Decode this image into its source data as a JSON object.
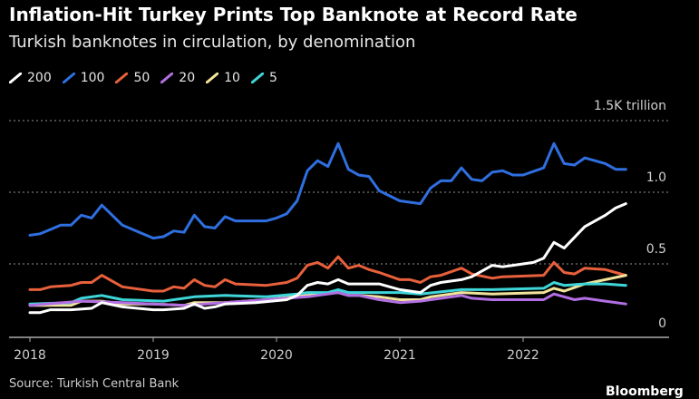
{
  "title": "Inflation-Hit Turkey Prints Top Banknote at Record Rate",
  "subtitle": "Turkish banknotes in circulation, by denomination",
  "source": "Source: Turkish Central Bank",
  "logo": "Bloomberg",
  "chart_data": {
    "type": "line",
    "xlabel": "",
    "ylabel": "",
    "ylim": [
      0,
      1.5
    ],
    "y_ticks": [
      {
        "value": 0,
        "label": "0"
      },
      {
        "value": 0.5,
        "label": "0.5"
      },
      {
        "value": 1.0,
        "label": "1.0"
      },
      {
        "value": 1.5,
        "label": "1.5K trillion"
      }
    ],
    "x_ticks": [
      "2018",
      "2019",
      "2020",
      "2021",
      "2022"
    ],
    "grid": "horizontal dotted",
    "legend": "top-left",
    "series": [
      {
        "name": "200",
        "color": "#ffffff",
        "points": [
          [
            "2018-01",
            0.16
          ],
          [
            "2018-02",
            0.16
          ],
          [
            "2018-03",
            0.18
          ],
          [
            "2018-05",
            0.18
          ],
          [
            "2018-07",
            0.19
          ],
          [
            "2018-08",
            0.23
          ],
          [
            "2018-10",
            0.2
          ],
          [
            "2019-01",
            0.18
          ],
          [
            "2019-02",
            0.18
          ],
          [
            "2019-04",
            0.19
          ],
          [
            "2019-05",
            0.22
          ],
          [
            "2019-06",
            0.19
          ],
          [
            "2019-07",
            0.2
          ],
          [
            "2019-08",
            0.22
          ],
          [
            "2019-11",
            0.23
          ],
          [
            "2020-02",
            0.25
          ],
          [
            "2020-03",
            0.28
          ],
          [
            "2020-04",
            0.35
          ],
          [
            "2020-05",
            0.37
          ],
          [
            "2020-06",
            0.36
          ],
          [
            "2020-07",
            0.39
          ],
          [
            "2020-08",
            0.36
          ],
          [
            "2020-09",
            0.36
          ],
          [
            "2020-10",
            0.36
          ],
          [
            "2020-11",
            0.36
          ],
          [
            "2021-01",
            0.32
          ],
          [
            "2021-02",
            0.31
          ],
          [
            "2021-03",
            0.3
          ],
          [
            "2021-04",
            0.35
          ],
          [
            "2021-05",
            0.37
          ],
          [
            "2021-07",
            0.39
          ],
          [
            "2021-08",
            0.41
          ],
          [
            "2021-10",
            0.49
          ],
          [
            "2021-11",
            0.48
          ],
          [
            "2021-12",
            0.49
          ],
          [
            "2022-02",
            0.51
          ],
          [
            "2022-03",
            0.54
          ],
          [
            "2022-04",
            0.65
          ],
          [
            "2022-05",
            0.61
          ],
          [
            "2022-07",
            0.76
          ],
          [
            "2022-09",
            0.84
          ],
          [
            "2022-10",
            0.89
          ],
          [
            "2022-11",
            0.92
          ]
        ]
      },
      {
        "name": "100",
        "color": "#2f6fe0",
        "points": [
          [
            "2018-01",
            0.7
          ],
          [
            "2018-02",
            0.71
          ],
          [
            "2018-04",
            0.77
          ],
          [
            "2018-05",
            0.77
          ],
          [
            "2018-06",
            0.84
          ],
          [
            "2018-07",
            0.82
          ],
          [
            "2018-08",
            0.91
          ],
          [
            "2018-10",
            0.77
          ],
          [
            "2019-01",
            0.68
          ],
          [
            "2019-02",
            0.69
          ],
          [
            "2019-03",
            0.73
          ],
          [
            "2019-04",
            0.72
          ],
          [
            "2019-05",
            0.84
          ],
          [
            "2019-06",
            0.76
          ],
          [
            "2019-07",
            0.75
          ],
          [
            "2019-08",
            0.83
          ],
          [
            "2019-09",
            0.8
          ],
          [
            "2019-12",
            0.8
          ],
          [
            "2020-01",
            0.82
          ],
          [
            "2020-02",
            0.85
          ],
          [
            "2020-03",
            0.94
          ],
          [
            "2020-04",
            1.15
          ],
          [
            "2020-05",
            1.22
          ],
          [
            "2020-06",
            1.18
          ],
          [
            "2020-07",
            1.34
          ],
          [
            "2020-08",
            1.16
          ],
          [
            "2020-09",
            1.12
          ],
          [
            "2020-10",
            1.11
          ],
          [
            "2020-11",
            1.01
          ],
          [
            "2021-01",
            0.94
          ],
          [
            "2021-03",
            0.92
          ],
          [
            "2021-04",
            1.03
          ],
          [
            "2021-05",
            1.08
          ],
          [
            "2021-06",
            1.08
          ],
          [
            "2021-07",
            1.17
          ],
          [
            "2021-08",
            1.09
          ],
          [
            "2021-09",
            1.08
          ],
          [
            "2021-10",
            1.14
          ],
          [
            "2021-11",
            1.15
          ],
          [
            "2021-12",
            1.12
          ],
          [
            "2022-01",
            1.12
          ],
          [
            "2022-03",
            1.17
          ],
          [
            "2022-04",
            1.34
          ],
          [
            "2022-05",
            1.2
          ],
          [
            "2022-06",
            1.19
          ],
          [
            "2022-07",
            1.24
          ],
          [
            "2022-09",
            1.2
          ],
          [
            "2022-10",
            1.16
          ],
          [
            "2022-11",
            1.16
          ]
        ]
      },
      {
        "name": "50",
        "color": "#e8603c",
        "points": [
          [
            "2018-01",
            0.32
          ],
          [
            "2018-02",
            0.32
          ],
          [
            "2018-03",
            0.34
          ],
          [
            "2018-05",
            0.35
          ],
          [
            "2018-06",
            0.37
          ],
          [
            "2018-07",
            0.37
          ],
          [
            "2018-08",
            0.42
          ],
          [
            "2018-10",
            0.34
          ],
          [
            "2019-01",
            0.31
          ],
          [
            "2019-02",
            0.31
          ],
          [
            "2019-03",
            0.34
          ],
          [
            "2019-04",
            0.33
          ],
          [
            "2019-05",
            0.39
          ],
          [
            "2019-06",
            0.35
          ],
          [
            "2019-07",
            0.34
          ],
          [
            "2019-08",
            0.39
          ],
          [
            "2019-09",
            0.36
          ],
          [
            "2019-12",
            0.35
          ],
          [
            "2020-02",
            0.37
          ],
          [
            "2020-03",
            0.4
          ],
          [
            "2020-04",
            0.49
          ],
          [
            "2020-05",
            0.51
          ],
          [
            "2020-06",
            0.47
          ],
          [
            "2020-07",
            0.55
          ],
          [
            "2020-08",
            0.47
          ],
          [
            "2020-09",
            0.49
          ],
          [
            "2020-10",
            0.46
          ],
          [
            "2020-11",
            0.44
          ],
          [
            "2021-01",
            0.39
          ],
          [
            "2021-02",
            0.39
          ],
          [
            "2021-03",
            0.37
          ],
          [
            "2021-04",
            0.41
          ],
          [
            "2021-05",
            0.42
          ],
          [
            "2021-07",
            0.47
          ],
          [
            "2021-08",
            0.43
          ],
          [
            "2021-10",
            0.4
          ],
          [
            "2021-11",
            0.41
          ],
          [
            "2022-03",
            0.42
          ],
          [
            "2022-04",
            0.51
          ],
          [
            "2022-05",
            0.44
          ],
          [
            "2022-06",
            0.43
          ],
          [
            "2022-07",
            0.47
          ],
          [
            "2022-09",
            0.46
          ],
          [
            "2022-10",
            0.44
          ],
          [
            "2022-11",
            0.42
          ]
        ]
      },
      {
        "name": "20",
        "color": "#b26fe3",
        "points": [
          [
            "2018-01",
            0.21
          ],
          [
            "2018-06",
            0.24
          ],
          [
            "2018-10",
            0.23
          ],
          [
            "2019-04",
            0.21
          ],
          [
            "2019-08",
            0.23
          ],
          [
            "2019-12",
            0.25
          ],
          [
            "2020-04",
            0.27
          ],
          [
            "2020-07",
            0.3
          ],
          [
            "2020-08",
            0.28
          ],
          [
            "2020-09",
            0.28
          ],
          [
            "2020-11",
            0.25
          ],
          [
            "2021-01",
            0.23
          ],
          [
            "2021-03",
            0.24
          ],
          [
            "2021-04",
            0.25
          ],
          [
            "2021-07",
            0.28
          ],
          [
            "2021-08",
            0.26
          ],
          [
            "2021-10",
            0.25
          ],
          [
            "2022-03",
            0.25
          ],
          [
            "2022-04",
            0.29
          ],
          [
            "2022-05",
            0.27
          ],
          [
            "2022-06",
            0.25
          ],
          [
            "2022-07",
            0.26
          ],
          [
            "2022-09",
            0.24
          ],
          [
            "2022-11",
            0.22
          ]
        ]
      },
      {
        "name": "10",
        "color": "#f2e49b",
        "points": [
          [
            "2018-01",
            0.21
          ],
          [
            "2018-05",
            0.21
          ],
          [
            "2018-06",
            0.24
          ],
          [
            "2018-08",
            0.24
          ],
          [
            "2018-10",
            0.22
          ],
          [
            "2019-01",
            0.22
          ],
          [
            "2019-04",
            0.21
          ],
          [
            "2019-05",
            0.23
          ],
          [
            "2019-08",
            0.23
          ],
          [
            "2019-12",
            0.25
          ],
          [
            "2020-04",
            0.28
          ],
          [
            "2020-07",
            0.3
          ],
          [
            "2020-08",
            0.28
          ],
          [
            "2020-09",
            0.28
          ],
          [
            "2020-11",
            0.27
          ],
          [
            "2021-01",
            0.25
          ],
          [
            "2021-03",
            0.25
          ],
          [
            "2021-04",
            0.27
          ],
          [
            "2021-07",
            0.3
          ],
          [
            "2021-10",
            0.29
          ],
          [
            "2022-03",
            0.3
          ],
          [
            "2022-04",
            0.33
          ],
          [
            "2022-05",
            0.31
          ],
          [
            "2022-07",
            0.36
          ],
          [
            "2022-09",
            0.39
          ],
          [
            "2022-11",
            0.42
          ]
        ]
      },
      {
        "name": "5",
        "color": "#3ed6d9",
        "points": [
          [
            "2018-01",
            0.22
          ],
          [
            "2018-05",
            0.23
          ],
          [
            "2018-06",
            0.26
          ],
          [
            "2018-08",
            0.28
          ],
          [
            "2018-10",
            0.25
          ],
          [
            "2019-02",
            0.24
          ],
          [
            "2019-05",
            0.27
          ],
          [
            "2019-08",
            0.28
          ],
          [
            "2019-12",
            0.27
          ],
          [
            "2020-03",
            0.29
          ],
          [
            "2020-04",
            0.3
          ],
          [
            "2020-06",
            0.3
          ],
          [
            "2020-07",
            0.32
          ],
          [
            "2020-08",
            0.3
          ],
          [
            "2020-09",
            0.3
          ],
          [
            "2021-01",
            0.3
          ],
          [
            "2021-03",
            0.29
          ],
          [
            "2021-07",
            0.32
          ],
          [
            "2021-10",
            0.32
          ],
          [
            "2022-03",
            0.33
          ],
          [
            "2022-04",
            0.37
          ],
          [
            "2022-05",
            0.35
          ],
          [
            "2022-07",
            0.36
          ],
          [
            "2022-09",
            0.36
          ],
          [
            "2022-11",
            0.35
          ]
        ]
      }
    ]
  }
}
